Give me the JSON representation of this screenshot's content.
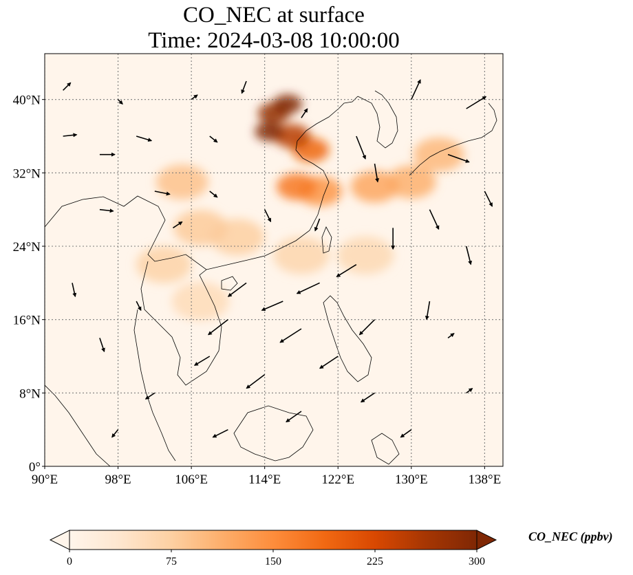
{
  "title": {
    "line1": "CO_NEC at surface",
    "line2": "Time: 2024-03-08 10:00:00"
  },
  "map": {
    "extent": {
      "lon_min": 90,
      "lon_max": 140,
      "lat_min": 0,
      "lat_max": 45
    },
    "gridlines": true,
    "x_ticks": [
      {
        "lon": 90,
        "label": "90°E"
      },
      {
        "lon": 98,
        "label": "98°E"
      },
      {
        "lon": 106,
        "label": "106°E"
      },
      {
        "lon": 114,
        "label": "114°E"
      },
      {
        "lon": 122,
        "label": "122°E"
      },
      {
        "lon": 130,
        "label": "130°E"
      },
      {
        "lon": 138,
        "label": "138°E"
      }
    ],
    "y_ticks": [
      {
        "lat": 0,
        "label": "0°"
      },
      {
        "lat": 8,
        "label": "8°N"
      },
      {
        "lat": 16,
        "label": "16°N"
      },
      {
        "lat": 24,
        "label": "24°N"
      },
      {
        "lat": 32,
        "label": "32°N"
      },
      {
        "lat": 40,
        "label": "40°N"
      }
    ],
    "background_color": "#fff5eb",
    "grid_color": "#7a7a7a"
  },
  "chart_data": {
    "type": "heatmap",
    "variable": "CO_NEC",
    "level": "surface",
    "time": "2024-03-08 10:00:00",
    "units": "ppbv",
    "hotspots": [
      {
        "lon": 114.5,
        "lat": 36.5,
        "value": 300
      },
      {
        "lon": 116.5,
        "lat": 39.5,
        "value": 300
      },
      {
        "lon": 115.0,
        "lat": 38.5,
        "value": 280
      },
      {
        "lon": 117.0,
        "lat": 36.0,
        "value": 250
      },
      {
        "lon": 119.0,
        "lat": 34.5,
        "value": 190
      },
      {
        "lon": 117.5,
        "lat": 30.5,
        "value": 170
      },
      {
        "lon": 120.0,
        "lat": 30.0,
        "value": 140
      },
      {
        "lon": 126.0,
        "lat": 30.5,
        "value": 120
      },
      {
        "lon": 130.0,
        "lat": 31.0,
        "value": 110
      },
      {
        "lon": 133.0,
        "lat": 34.0,
        "value": 100
      },
      {
        "lon": 105.0,
        "lat": 31.0,
        "value": 90
      },
      {
        "lon": 107.0,
        "lat": 26.0,
        "value": 80
      },
      {
        "lon": 103.0,
        "lat": 22.0,
        "value": 70
      },
      {
        "lon": 111.0,
        "lat": 25.0,
        "value": 75
      },
      {
        "lon": 118.0,
        "lat": 23.0,
        "value": 65
      },
      {
        "lon": 125.0,
        "lat": 23.0,
        "value": 60
      },
      {
        "lon": 107.0,
        "lat": 18.0,
        "value": 55
      }
    ],
    "wind_vectors": [
      {
        "lon": 92,
        "lat": 41,
        "u": 0.5,
        "v": 0.5
      },
      {
        "lon": 100,
        "lat": 36,
        "u": 1.0,
        "v": -0.3
      },
      {
        "lon": 96,
        "lat": 34,
        "u": 1.0,
        "v": 0.0
      },
      {
        "lon": 102,
        "lat": 30,
        "u": 1.0,
        "v": -0.2
      },
      {
        "lon": 96,
        "lat": 28,
        "u": 0.9,
        "v": -0.1
      },
      {
        "lon": 104,
        "lat": 26,
        "u": 0.6,
        "v": 0.4
      },
      {
        "lon": 112,
        "lat": 42,
        "u": -0.3,
        "v": -0.8
      },
      {
        "lon": 118,
        "lat": 38,
        "u": 0.4,
        "v": 0.6
      },
      {
        "lon": 124,
        "lat": 36,
        "u": 0.6,
        "v": -1.5
      },
      {
        "lon": 126,
        "lat": 33,
        "u": 0.2,
        "v": -1.2
      },
      {
        "lon": 130,
        "lat": 40,
        "u": 0.6,
        "v": 1.3
      },
      {
        "lon": 136,
        "lat": 39,
        "u": 1.3,
        "v": 0.8
      },
      {
        "lon": 134,
        "lat": 34,
        "u": 1.4,
        "v": -0.5
      },
      {
        "lon": 138,
        "lat": 30,
        "u": 0.5,
        "v": -1.0
      },
      {
        "lon": 132,
        "lat": 28,
        "u": 0.6,
        "v": -1.3
      },
      {
        "lon": 128,
        "lat": 26,
        "u": 0.0,
        "v": -1.4
      },
      {
        "lon": 136,
        "lat": 24,
        "u": 0.3,
        "v": -1.2
      },
      {
        "lon": 124,
        "lat": 22,
        "u": -1.3,
        "v": -0.8
      },
      {
        "lon": 120,
        "lat": 20,
        "u": -1.5,
        "v": -0.7
      },
      {
        "lon": 116,
        "lat": 18,
        "u": -1.4,
        "v": -0.6
      },
      {
        "lon": 112,
        "lat": 20,
        "u": -1.2,
        "v": -0.9
      },
      {
        "lon": 110,
        "lat": 16,
        "u": -1.3,
        "v": -1.0
      },
      {
        "lon": 118,
        "lat": 15,
        "u": -1.4,
        "v": -0.9
      },
      {
        "lon": 126,
        "lat": 16,
        "u": -1.0,
        "v": -1.0
      },
      {
        "lon": 132,
        "lat": 18,
        "u": -0.2,
        "v": -1.2
      },
      {
        "lon": 134,
        "lat": 14,
        "u": 0.4,
        "v": 0.3
      },
      {
        "lon": 122,
        "lat": 12,
        "u": -1.2,
        "v": -0.8
      },
      {
        "lon": 114,
        "lat": 10,
        "u": -1.2,
        "v": -0.9
      },
      {
        "lon": 108,
        "lat": 12,
        "u": -1.0,
        "v": -0.6
      },
      {
        "lon": 118,
        "lat": 6,
        "u": -1.0,
        "v": -0.7
      },
      {
        "lon": 126,
        "lat": 8,
        "u": -0.9,
        "v": -0.6
      },
      {
        "lon": 110,
        "lat": 4,
        "u": -1.0,
        "v": -0.5
      },
      {
        "lon": 102,
        "lat": 8,
        "u": -0.6,
        "v": -0.4
      },
      {
        "lon": 96,
        "lat": 14,
        "u": 0.3,
        "v": -0.9
      },
      {
        "lon": 93,
        "lat": 20,
        "u": 0.2,
        "v": -0.9
      },
      {
        "lon": 100,
        "lat": 18,
        "u": 0.3,
        "v": -0.6
      },
      {
        "lon": 98,
        "lat": 4,
        "u": -0.4,
        "v": -0.5
      },
      {
        "lon": 130,
        "lat": 4,
        "u": -0.7,
        "v": -0.5
      },
      {
        "lon": 136,
        "lat": 8,
        "u": 0.4,
        "v": 0.3
      },
      {
        "lon": 108,
        "lat": 36,
        "u": 0.5,
        "v": -0.4
      },
      {
        "lon": 106,
        "lat": 40,
        "u": 0.4,
        "v": 0.3
      },
      {
        "lon": 98,
        "lat": 40,
        "u": 0.3,
        "v": -0.3
      },
      {
        "lon": 114,
        "lat": 28,
        "u": 0.4,
        "v": -0.8
      },
      {
        "lon": 120,
        "lat": 27,
        "u": -0.3,
        "v": -0.8
      },
      {
        "lon": 108,
        "lat": 30,
        "u": 0.5,
        "v": -0.4
      },
      {
        "lon": 92,
        "lat": 36,
        "u": 0.9,
        "v": 0.1
      }
    ]
  },
  "colorbar": {
    "label": "CO_NEC (ppbv)",
    "vmin": 0,
    "vmax": 300,
    "ticks": [
      {
        "value": 0,
        "label": "0"
      },
      {
        "value": 75,
        "label": "75"
      },
      {
        "value": 150,
        "label": "150"
      },
      {
        "value": 225,
        "label": "225"
      },
      {
        "value": 300,
        "label": "300"
      }
    ],
    "colormap": [
      "#fff5eb",
      "#fee6ce",
      "#fdd0a2",
      "#fdae6b",
      "#fd8d3c",
      "#f16913",
      "#d94801",
      "#a63603",
      "#7f2704"
    ],
    "extend": "both"
  }
}
